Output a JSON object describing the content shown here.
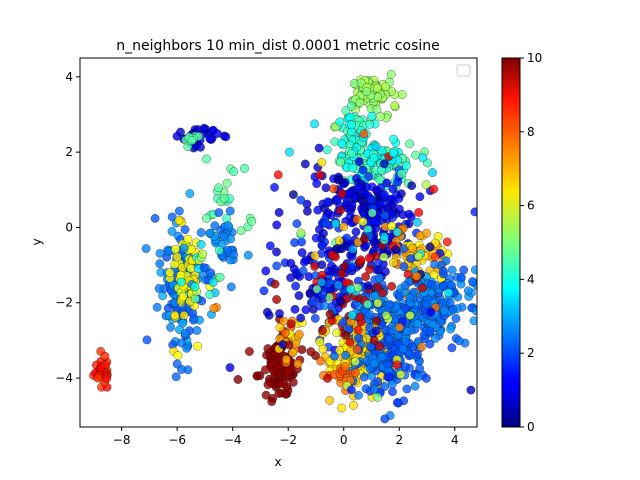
{
  "chart_data": {
    "type": "scatter",
    "title": "n_neighbors 10 min_dist 0.0001 metric cosine",
    "xlabel": "x",
    "ylabel": "y",
    "xlim": [
      -9.5,
      4.8
    ],
    "ylim": [
      -5.3,
      4.5
    ],
    "xticks": [
      -8,
      -6,
      -4,
      -2,
      0,
      2,
      4
    ],
    "yticks": [
      -4,
      -2,
      0,
      2,
      4
    ],
    "xtick_labels": [
      "−8",
      "−6",
      "−4",
      "−2",
      "0",
      "2",
      "4"
    ],
    "ytick_labels": [
      "−4",
      "−2",
      "0",
      "2",
      "4"
    ],
    "grid": false,
    "legend": {
      "placement": "top-right",
      "entries": []
    },
    "colorbar": {
      "colormap": "jet",
      "range": [
        0,
        10
      ],
      "ticks": [
        0,
        2,
        4,
        6,
        8,
        10
      ],
      "tick_labels": [
        "0",
        "2",
        "4",
        "6",
        "8",
        "10"
      ]
    },
    "marker": {
      "edge_color": "#000000",
      "alpha": 0.8
    },
    "clusters": [
      {
        "cx": -8.7,
        "cy": -3.8,
        "sx": 0.15,
        "sy": 0.25,
        "n": 30,
        "c": [
          8.2,
          8.8
        ],
        "shape": "blob"
      },
      {
        "cx": -5.3,
        "cy": 2.4,
        "sx": 0.4,
        "sy": 0.12,
        "n": 40,
        "c": [
          0.5,
          1.5
        ],
        "shape": "blob"
      },
      {
        "cx": -5.5,
        "cy": 2.2,
        "sx": 0.2,
        "sy": 0.15,
        "n": 8,
        "c": [
          4.5,
          5.0
        ],
        "shape": "blob"
      },
      {
        "cx": -4.4,
        "cy": 0.8,
        "sx": 0.35,
        "sy": 0.4,
        "n": 20,
        "c": [
          4.3,
          4.9
        ],
        "shape": "blob"
      },
      {
        "cx": -4.3,
        "cy": -0.3,
        "sx": 0.3,
        "sy": 0.4,
        "n": 35,
        "c": [
          2.2,
          2.8
        ],
        "shape": "blob"
      },
      {
        "cx": -5.9,
        "cy": -1.6,
        "sx": 0.35,
        "sy": 0.9,
        "n": 150,
        "c": [
          2.0,
          3.0
        ],
        "shape": "blob"
      },
      {
        "cx": -5.8,
        "cy": -1.3,
        "sx": 0.3,
        "sy": 0.7,
        "n": 55,
        "c": [
          6.0,
          6.6
        ],
        "shape": "blob"
      },
      {
        "cx": -5.0,
        "cy": -1.2,
        "sx": 0.4,
        "sy": 0.5,
        "n": 25,
        "c": [
          2.0,
          6.0
        ],
        "shape": "blob"
      },
      {
        "cx": -4.6,
        "cy": -2.1,
        "sx": 0.05,
        "sy": 0.05,
        "n": 2,
        "c": [
          7.3,
          7.5
        ],
        "shape": "blob"
      },
      {
        "cx": -3.4,
        "cy": 0.1,
        "sx": 0.08,
        "sy": 0.08,
        "n": 3,
        "c": [
          4.6,
          4.8
        ],
        "shape": "blob"
      },
      {
        "cx": -2.4,
        "cy": -3.7,
        "sx": 0.35,
        "sy": 0.4,
        "n": 110,
        "c": [
          9.7,
          10.0
        ],
        "shape": "blob"
      },
      {
        "cx": -2.0,
        "cy": -3.0,
        "sx": 0.3,
        "sy": 0.3,
        "n": 25,
        "c": [
          6.0,
          8.0
        ],
        "shape": "blob"
      },
      {
        "cx": 1.0,
        "cy": 3.6,
        "sx": 0.4,
        "sy": 0.25,
        "n": 80,
        "c": [
          5.0,
          5.5
        ],
        "shape": "blob"
      },
      {
        "cx": 0.4,
        "cy": 2.4,
        "sx": 0.4,
        "sy": 0.4,
        "n": 60,
        "c": [
          3.8,
          4.6
        ],
        "shape": "blob"
      },
      {
        "cx": 1.2,
        "cy": 1.7,
        "sx": 0.8,
        "sy": 0.3,
        "n": 110,
        "c": [
          3.5,
          4.8
        ],
        "shape": "blob"
      },
      {
        "cx": 0.5,
        "cy": 0.7,
        "sx": 0.9,
        "sy": 0.4,
        "n": 120,
        "c": [
          0.5,
          1.5
        ],
        "shape": "blob"
      },
      {
        "cx": 1.3,
        "cy": -0.3,
        "sx": 0.7,
        "sy": 0.6,
        "n": 90,
        "c": [
          0.5,
          1.8
        ],
        "shape": "blob"
      },
      {
        "cx": -0.5,
        "cy": -1.2,
        "sx": 0.9,
        "sy": 0.8,
        "n": 140,
        "c": [
          0.5,
          2.0
        ],
        "shape": "blob"
      },
      {
        "cx": 2.8,
        "cy": -1.0,
        "sx": 0.5,
        "sy": 0.5,
        "n": 70,
        "c": [
          6.2,
          7.5
        ],
        "shape": "blob"
      },
      {
        "cx": 3.2,
        "cy": -2.0,
        "sx": 0.7,
        "sy": 0.5,
        "n": 160,
        "c": [
          2.0,
          2.8
        ],
        "shape": "blob"
      },
      {
        "cx": 1.7,
        "cy": -2.6,
        "sx": 0.9,
        "sy": 0.5,
        "n": 180,
        "c": [
          2.0,
          2.8
        ],
        "shape": "blob"
      },
      {
        "cx": 0.4,
        "cy": -3.4,
        "sx": 0.6,
        "sy": 0.5,
        "n": 110,
        "c": [
          6.2,
          6.9
        ],
        "shape": "blob"
      },
      {
        "cx": 1.6,
        "cy": -3.6,
        "sx": 0.6,
        "sy": 0.5,
        "n": 130,
        "c": [
          1.8,
          2.6
        ],
        "shape": "blob"
      },
      {
        "cx": 0.0,
        "cy": -3.9,
        "sx": 0.4,
        "sy": 0.2,
        "n": 20,
        "c": [
          7.5,
          8.2
        ],
        "shape": "blob"
      },
      {
        "cx": 0.3,
        "cy": -1.8,
        "sx": 1.2,
        "sy": 1.0,
        "n": 45,
        "c": [
          8.8,
          10.0
        ],
        "shape": "blob"
      },
      {
        "cx": 1.0,
        "cy": -1.0,
        "sx": 1.5,
        "sy": 1.6,
        "n": 120,
        "c": [
          0.0,
          10.0
        ],
        "shape": "blob"
      }
    ]
  }
}
